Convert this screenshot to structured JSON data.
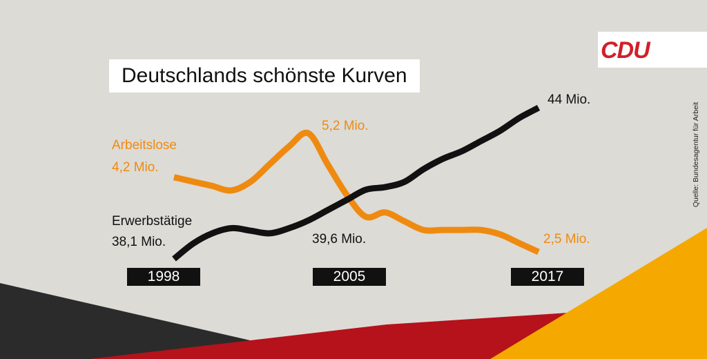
{
  "title": "Deutschlands schönste Kurven",
  "logo_text": "CDU",
  "source": "Quelle: Bundesagentur für Arbeit",
  "colors": {
    "background": "#dcdbd6",
    "unemployed": "#ef8a10",
    "employed": "#111111",
    "logo_red": "#d0202a",
    "flag_black": "#2b2b2b",
    "flag_red": "#b5121b",
    "flag_gold": "#f5a800"
  },
  "labels": {
    "unemployed_name": "Arbeitslose",
    "unemployed_start": "4,2 Mio.",
    "unemployed_peak": "5,2 Mio.",
    "unemployed_end": "2,5 Mio.",
    "employed_name": "Erwerbstätige",
    "employed_start": "38,1 Mio.",
    "employed_mid": "39,6 Mio.",
    "employed_end": "44 Mio."
  },
  "chart_data": {
    "type": "line",
    "title": "Deutschlands schönste Kurven",
    "x_ticks": [
      "1998",
      "2005",
      "2017"
    ],
    "grid": false,
    "legend": "none",
    "series": [
      {
        "name": "Arbeitslose",
        "color": "#ef8a10",
        "x": [
          1998,
          1999,
          2000,
          2001,
          2002,
          2003,
          2004,
          2005,
          2006,
          2007,
          2008,
          2009,
          2010,
          2011,
          2012,
          2013,
          2014,
          2015,
          2016,
          2017
        ],
        "y": [
          4.2,
          4.1,
          4.0,
          3.9,
          4.1,
          4.5,
          4.9,
          5.2,
          4.5,
          3.8,
          3.3,
          3.4,
          3.2,
          3.0,
          3.0,
          3.0,
          3.0,
          2.9,
          2.7,
          2.5
        ]
      },
      {
        "name": "Erwerbstätige",
        "color": "#111111",
        "x": [
          1998,
          1999,
          2000,
          2001,
          2002,
          2003,
          2004,
          2005,
          2006,
          2007,
          2008,
          2009,
          2010,
          2011,
          2012,
          2013,
          2014,
          2015,
          2016,
          2017
        ],
        "y": [
          38.1,
          38.7,
          39.1,
          39.3,
          39.2,
          39.1,
          39.3,
          39.6,
          40.0,
          40.4,
          40.8,
          40.9,
          41.1,
          41.6,
          42.0,
          42.3,
          42.7,
          43.1,
          43.6,
          44.0
        ]
      }
    ]
  }
}
